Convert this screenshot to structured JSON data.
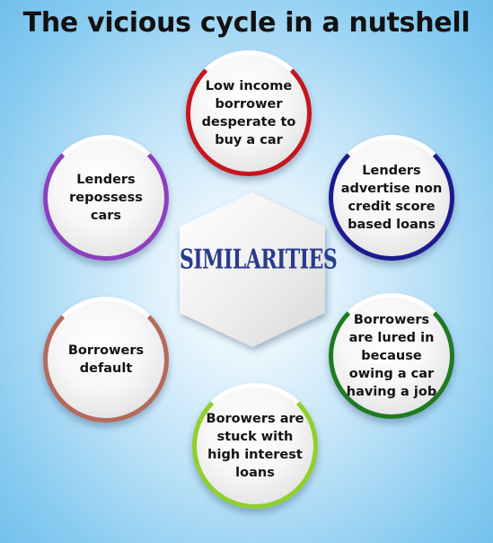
{
  "title": "The vicious cycle in a nutshell",
  "center": {
    "label": "SIMILARITIES"
  },
  "nodes": [
    {
      "text": "Low income borrower desperate to buy a car",
      "color": "#c8151d"
    },
    {
      "text": "Lenders advertise non credit score based loans",
      "color": "#1c1a8f"
    },
    {
      "text": "Borrowers are lured in because owing a car having a job",
      "color": "#1f7a24"
    },
    {
      "text": "Borowers are stuck with high interest loans",
      "color": "#8fd02a"
    },
    {
      "text": "Borrowers default",
      "color": "#b56a5c"
    },
    {
      "text": "Lenders repossess cars",
      "color": "#8e3fc0"
    }
  ]
}
